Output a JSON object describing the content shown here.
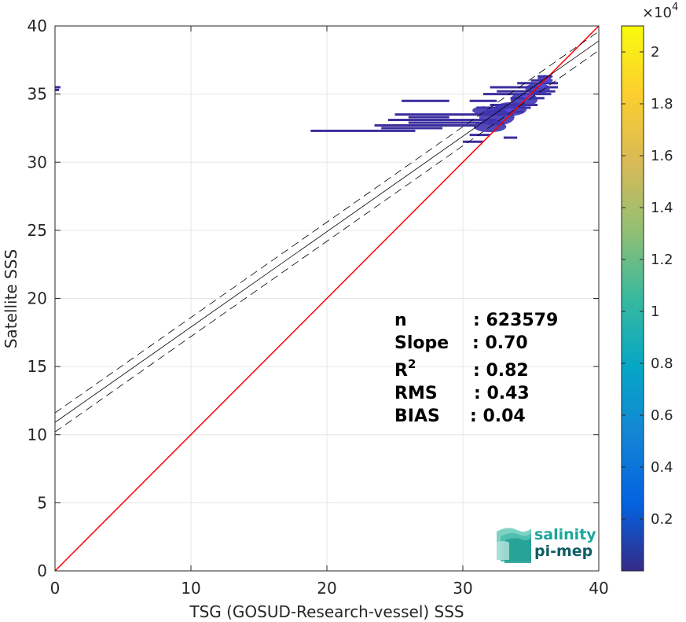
{
  "chart_data": {
    "type": "scatter",
    "subtype": "2d-density-histogram",
    "xlabel": "TSG (GOSUD-Research-vessel) SSS",
    "ylabel": "Satellite SSS",
    "xlim": [
      0,
      40
    ],
    "ylim": [
      0,
      40
    ],
    "x_ticks": [
      0,
      10,
      20,
      30,
      40
    ],
    "y_ticks": [
      0,
      5,
      10,
      15,
      20,
      25,
      30,
      35,
      40
    ],
    "grid": true,
    "colorbar": {
      "colormap": "parula",
      "min": 0,
      "max": 2.1,
      "ticks": [
        0.2,
        0.4,
        0.6,
        0.8,
        1,
        1.2,
        1.4,
        1.6,
        1.8,
        2
      ],
      "tick_labels": [
        "0.2",
        "0.4",
        "0.6",
        "0.8",
        "1",
        "1.2",
        "1.4",
        "1.6",
        "1.8",
        "2"
      ],
      "exponent_label": "×10",
      "exponent_power": "4"
    },
    "reference_line": {
      "slope": 1,
      "intercept": 0,
      "color": "#ff0000"
    },
    "fit_line": {
      "slope": 0.7,
      "intercept": 10.9,
      "color": "#000000"
    },
    "fit_band_upper": {
      "slope": 0.7,
      "intercept": 11.6
    },
    "fit_band_lower": {
      "slope": 0.7,
      "intercept": 10.2
    },
    "density_segments": [
      {
        "y": 35.5,
        "x0": 0.0,
        "x1": 0.4
      },
      {
        "y": 35.3,
        "x0": 0.0,
        "x1": 0.3
      },
      {
        "y": 32.3,
        "x0": 18.8,
        "x1": 26.5
      },
      {
        "y": 32.5,
        "x0": 24.0,
        "x1": 28.5
      },
      {
        "y": 32.7,
        "x0": 23.5,
        "x1": 31.0
      },
      {
        "y": 32.9,
        "x0": 26.0,
        "x1": 33.0
      },
      {
        "y": 33.1,
        "x0": 24.5,
        "x1": 32.5
      },
      {
        "y": 33.3,
        "x0": 26.0,
        "x1": 29.0
      },
      {
        "y": 33.5,
        "x0": 25.0,
        "x1": 33.5
      },
      {
        "y": 33.7,
        "x0": 31.5,
        "x1": 34.5
      },
      {
        "y": 34.0,
        "x0": 31.0,
        "x1": 35.0
      },
      {
        "y": 34.2,
        "x0": 32.0,
        "x1": 35.5
      },
      {
        "y": 34.5,
        "x0": 25.5,
        "x1": 29.0
      },
      {
        "y": 34.5,
        "x0": 30.5,
        "x1": 32.5
      },
      {
        "y": 34.7,
        "x0": 33.5,
        "x1": 36.0
      },
      {
        "y": 35.0,
        "x0": 31.5,
        "x1": 36.5
      },
      {
        "y": 35.2,
        "x0": 32.5,
        "x1": 36.8
      },
      {
        "y": 35.5,
        "x0": 32.0,
        "x1": 37.0
      },
      {
        "y": 35.8,
        "x0": 34.0,
        "x1": 37.0
      },
      {
        "y": 36.0,
        "x0": 35.0,
        "x1": 36.6
      },
      {
        "y": 36.3,
        "x0": 35.5,
        "x1": 36.6
      },
      {
        "y": 32.0,
        "x0": 30.5,
        "x1": 32.0
      },
      {
        "y": 31.8,
        "x0": 33.0,
        "x1": 34.0
      },
      {
        "y": 31.5,
        "x0": 30.0,
        "x1": 31.5
      }
    ],
    "density_blobs": [
      {
        "x": 32.5,
        "y": 33.3,
        "rx": 1.3,
        "ry": 0.6
      },
      {
        "x": 33.5,
        "y": 33.9,
        "rx": 1.2,
        "ry": 0.5
      },
      {
        "x": 34.5,
        "y": 34.6,
        "rx": 1.0,
        "ry": 0.5
      },
      {
        "x": 35.5,
        "y": 35.4,
        "rx": 0.9,
        "ry": 0.4
      },
      {
        "x": 32.0,
        "y": 32.6,
        "rx": 1.2,
        "ry": 0.4
      },
      {
        "x": 31.5,
        "y": 33.8,
        "rx": 0.8,
        "ry": 0.3
      },
      {
        "x": 36.0,
        "y": 36.1,
        "rx": 0.5,
        "ry": 0.3
      }
    ],
    "density_hotspots": [
      {
        "x": 33.5,
        "y": 33.8
      },
      {
        "x": 34.8,
        "y": 34.8
      },
      {
        "x": 35.8,
        "y": 35.6
      },
      {
        "x": 36.2,
        "y": 36.0
      }
    ]
  },
  "stats": {
    "n_label": "n",
    "n_value": ": 623579",
    "slope_label": "Slope",
    "slope_value": ": 0.70",
    "r2_label": "R",
    "r2_sup": "2",
    "r2_value": ": 0.82",
    "rms_label": "RMS",
    "rms_value": ": 0.43",
    "bias_label": "BIAS",
    "bias_value": ": 0.04"
  },
  "logo": {
    "line1": "salinity",
    "line2": "pi-mep",
    "color1": "#1aa79a",
    "color2": "#0e5e63"
  }
}
